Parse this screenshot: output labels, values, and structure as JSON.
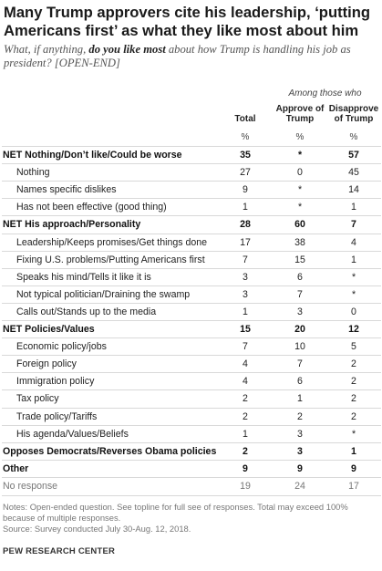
{
  "title": "Many Trump approvers cite his leadership, ‘putting Americans first’ as what they like most about him",
  "subtitle": {
    "before": "What, if anything, ",
    "emphasis": "do you like most",
    "after": " about how Trump is handling his job as president? [OPEN-END]"
  },
  "group_header": "Among those who",
  "columns": {
    "total": "Total",
    "approve": "Approve of Trump",
    "disapprove": "Disapprove of Trump"
  },
  "percent_symbol": "%",
  "rows": [
    {
      "label": "NET Nothing/Don’t like/Could be worse",
      "total": "35",
      "approve": "*",
      "disapprove": "57",
      "style": "bold"
    },
    {
      "label": "Nothing",
      "total": "27",
      "approve": "0",
      "disapprove": "45",
      "style": "sub"
    },
    {
      "label": "Names specific dislikes",
      "total": "9",
      "approve": "*",
      "disapprove": "14",
      "style": "sub"
    },
    {
      "label": "Has not been effective (good thing)",
      "total": "1",
      "approve": "*",
      "disapprove": "1",
      "style": "sub"
    },
    {
      "label": "NET His approach/Personality",
      "total": "28",
      "approve": "60",
      "disapprove": "7",
      "style": "bold"
    },
    {
      "label": "Leadership/Keeps promises/Get things done",
      "total": "17",
      "approve": "38",
      "disapprove": "4",
      "style": "sub"
    },
    {
      "label": "Fixing U.S. problems/Putting Americans first",
      "total": "7",
      "approve": "15",
      "disapprove": "1",
      "style": "sub"
    },
    {
      "label": "Speaks his mind/Tells it like it is",
      "total": "3",
      "approve": "6",
      "disapprove": "*",
      "style": "sub"
    },
    {
      "label": "Not typical politician/Draining the swamp",
      "total": "3",
      "approve": "7",
      "disapprove": "*",
      "style": "sub"
    },
    {
      "label": "Calls out/Stands up to the media",
      "total": "1",
      "approve": "3",
      "disapprove": "0",
      "style": "sub"
    },
    {
      "label": "NET Policies/Values",
      "total": "15",
      "approve": "20",
      "disapprove": "12",
      "style": "bold"
    },
    {
      "label": "Economic policy/jobs",
      "total": "7",
      "approve": "10",
      "disapprove": "5",
      "style": "sub"
    },
    {
      "label": "Foreign policy",
      "total": "4",
      "approve": "7",
      "disapprove": "2",
      "style": "sub"
    },
    {
      "label": "Immigration policy",
      "total": "4",
      "approve": "6",
      "disapprove": "2",
      "style": "sub"
    },
    {
      "label": "Tax policy",
      "total": "2",
      "approve": "1",
      "disapprove": "2",
      "style": "sub"
    },
    {
      "label": "Trade policy/Tariffs",
      "total": "2",
      "approve": "2",
      "disapprove": "2",
      "style": "sub"
    },
    {
      "label": "His agenda/Values/Beliefs",
      "total": "1",
      "approve": "3",
      "disapprove": "*",
      "style": "sub"
    },
    {
      "label": "Opposes Democrats/Reverses Obama policies",
      "total": "2",
      "approve": "3",
      "disapprove": "1",
      "style": "bold"
    },
    {
      "label": "Other",
      "total": "9",
      "approve": "9",
      "disapprove": "9",
      "style": "bold"
    },
    {
      "label": "No response",
      "total": "19",
      "approve": "24",
      "disapprove": "17",
      "style": "muted"
    }
  ],
  "notes": "Notes: Open-ended question. See topline for full see of responses. Total may exceed 100% because of multiple responses.",
  "source": "Source: Survey conducted July 30-Aug. 12, 2018.",
  "organization": "PEW RESEARCH CENTER",
  "colors": {
    "text": "#222222",
    "muted": "#777777",
    "rule": "#d9d9d9"
  }
}
